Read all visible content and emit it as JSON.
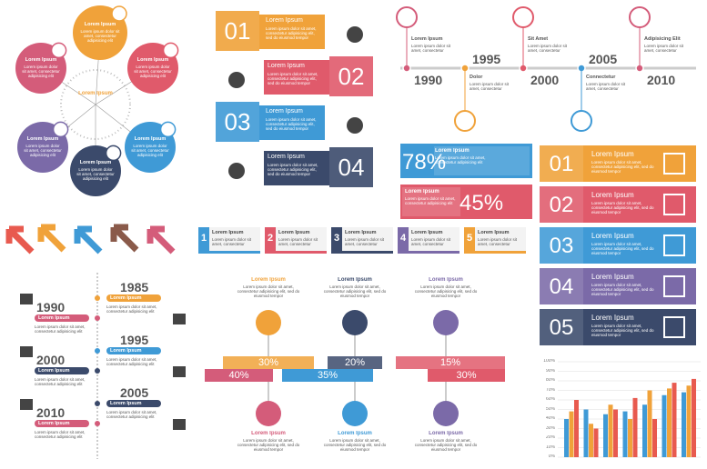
{
  "circles": {
    "center": "Lorem Ipsum",
    "items": [
      {
        "title": "Lorem Ipsum",
        "text": "Lorem ipsum dolor sit amet, consectetur adipisicing elit"
      },
      {
        "title": "Lorem Ipsum",
        "text": "Lorem ipsum dolor sit amet, consectetur adipisicing elit"
      },
      {
        "title": "Lorem Ipsum",
        "text": "Lorem ipsum dolor sit amet, consectetur adipisicing elit"
      },
      {
        "title": "Lorem Ipsum",
        "text": "Lorem ipsum dolor sit amet, consectetur adipisicing elit"
      },
      {
        "title": "Lorem Ipsum",
        "text": "Lorem ipsum dolor sit amet, consectetur adipisicing elit"
      },
      {
        "title": "Lorem Ipsum",
        "text": "Lorem ipsum dolor sit amet, consectetur adipisicing elit"
      }
    ]
  },
  "banners": [
    {
      "number": "01",
      "title": "Lorem Ipsum",
      "text": "Lorem ipsum dolor sit amet, consectetur adipisicing elit, sed do eiusmod tempor"
    },
    {
      "number": "02",
      "title": "Lorem Ipsum",
      "text": "Lorem ipsum dolor sit amet, consectetur adipisicing elit, sed do eiusmod tempor"
    },
    {
      "number": "03",
      "title": "Lorem Ipsum",
      "text": "Lorem ipsum dolor sit amet, consectetur adipisicing elit, sed do eiusmod tempor"
    },
    {
      "number": "04",
      "title": "Lorem Ipsum",
      "text": "Lorem ipsum dolor sit amet, consectetur adipisicing elit, sed do eiusmod tempor"
    }
  ],
  "timeline": {
    "years": [
      "1990",
      "1995",
      "2000",
      "2005",
      "2010"
    ],
    "labels": [
      {
        "title": "Lorem Ipsum",
        "text": "Lorem ipsum dolor sit amet, consectetur"
      },
      {
        "title": "Dolor",
        "text": "Lorem ipsum dolor sit amet, consectetur"
      },
      {
        "title": "Sit Amet",
        "text": "Lorem ipsum dolor sit amet, consectetur"
      },
      {
        "title": "Connectetur",
        "text": "Lorem ipsum dolor sit amet, consectetur"
      },
      {
        "title": "Adipisicing Elit",
        "text": "Lorem ipsum dolor sit amet, consectetur"
      }
    ]
  },
  "percent_cards": [
    {
      "value": "78%",
      "title": "Lorem Ipsum",
      "text": "Lorem ipsum dolor sit amet, consectetur adipisicing elit"
    },
    {
      "value": "45%",
      "title": "Lorem Ipsum",
      "text": "Lorem ipsum dolor sit amet, consectetur adipisicing elit"
    }
  ],
  "steps": [
    {
      "number": "1",
      "title": "Lorem Ipsum",
      "text": "Lorem ipsum dolor sit amet, consectetur"
    },
    {
      "number": "2",
      "title": "Lorem Ipsum",
      "text": "Lorem ipsum dolor sit amet, consectetur"
    },
    {
      "number": "3",
      "title": "Lorem Ipsum",
      "text": "Lorem ipsum dolor sit amet, consectetur"
    },
    {
      "number": "4",
      "title": "Lorem Ipsum",
      "text": "Lorem ipsum dolor sit amet, consectetur"
    },
    {
      "number": "5",
      "title": "Lorem Ipsum",
      "text": "Lorem ipsum dolor sit amet, consectetur"
    }
  ],
  "numbered_list": [
    {
      "number": "01",
      "title": "Lorem Ipsum",
      "text": "Lorem ipsum dolor sit amet, consectetur adipisicing elit, sed do eiusmod tempor"
    },
    {
      "number": "02",
      "title": "Lorem Ipsum",
      "text": "Lorem ipsum dolor sit amet, consectetur adipisicing elit, sed do eiusmod tempor"
    },
    {
      "number": "03",
      "title": "Lorem Ipsum",
      "text": "Lorem ipsum dolor sit amet, consectetur adipisicing elit, sed do eiusmod tempor"
    },
    {
      "number": "04",
      "title": "Lorem Ipsum",
      "text": "Lorem ipsum dolor sit amet, consectetur adipisicing elit, sed do eiusmod tempor"
    },
    {
      "number": "05",
      "title": "Lorem Ipsum",
      "text": "Lorem ipsum dolor sit amet, consectetur adipisicing elit, sed do eiusmod tempor"
    }
  ],
  "vertical_timeline": [
    {
      "year": "1985",
      "title": "Lorem Ipsum",
      "text": "Lorem ipsum dolor sit amet, consectetur adipisicing elit"
    },
    {
      "year": "1990",
      "title": "Lorem Ipsum",
      "text": "Lorem ipsum dolor sit amet, consectetur adipisicing elit"
    },
    {
      "year": "1995",
      "title": "Lorem Ipsum",
      "text": "Lorem ipsum dolor sit amet, consectetur adipisicing elit"
    },
    {
      "year": "2000",
      "title": "Lorem Ipsum",
      "text": "Lorem ipsum dolor sit amet, consectetur adipisicing elit"
    },
    {
      "year": "2005",
      "title": "Lorem Ipsum",
      "text": "Lorem ipsum dolor sit amet, consectetur adipisicing elit"
    },
    {
      "year": "2010",
      "title": "Lorem Ipsum",
      "text": "Lorem ipsum dolor sit amet, consectetur adipisicing elit"
    }
  ],
  "process": {
    "top": [
      {
        "title": "Lorem Ipsum",
        "text": "Lorem ipsum dolor sit amet, consectetur adipisicing elit, sed do eiusmod tempor"
      },
      {
        "title": "Lorem Ipsum",
        "text": "Lorem ipsum dolor sit amet, consectetur adipisicing elit, sed do eiusmod tempor"
      },
      {
        "title": "Lorem Ipsum",
        "text": "Lorem ipsum dolor sit amet, consectetur adipisicing elit, sed do eiusmod tempor"
      }
    ],
    "bottom": [
      {
        "title": "Lorem Ipsum",
        "text": "Lorem ipsum dolor sit amet, consectetur adipisicing elit, sed do eiusmod tempor"
      },
      {
        "title": "Lorem Ipsum",
        "text": "Lorem ipsum dolor sit amet, consectetur adipisicing elit, sed do eiusmod tempor"
      },
      {
        "title": "Lorem Ipsum",
        "text": "Lorem ipsum dolor sit amet, consectetur adipisicing elit, sed do eiusmod tempor"
      }
    ],
    "percents": [
      "30%",
      "20%",
      "15%",
      "40%",
      "35%",
      "30%"
    ]
  },
  "bar_chart": {
    "ylim": [
      0,
      100
    ],
    "yticks": [
      {
        "value": 0,
        "label": "0%"
      },
      {
        "value": 10,
        "label": "10%"
      },
      {
        "value": 20,
        "label": "20%"
      },
      {
        "value": 30,
        "label": "30%"
      },
      {
        "value": 40,
        "label": "40%"
      },
      {
        "value": 50,
        "label": "50%"
      },
      {
        "value": 60,
        "label": "60%"
      },
      {
        "value": 70,
        "label": "70%"
      },
      {
        "value": 80,
        "label": "80%"
      },
      {
        "value": 90,
        "label": "90%"
      },
      {
        "value": 100,
        "label": "100%"
      }
    ],
    "series": [
      {
        "color": "#3f9ad6",
        "values": [
          40,
          50,
          45,
          48,
          55,
          65,
          68
        ]
      },
      {
        "color": "#f0a23a",
        "values": [
          48,
          35,
          55,
          40,
          70,
          72,
          75
        ]
      },
      {
        "color": "#e85a4f",
        "values": [
          60,
          30,
          50,
          62,
          40,
          78,
          82
        ]
      }
    ]
  }
}
